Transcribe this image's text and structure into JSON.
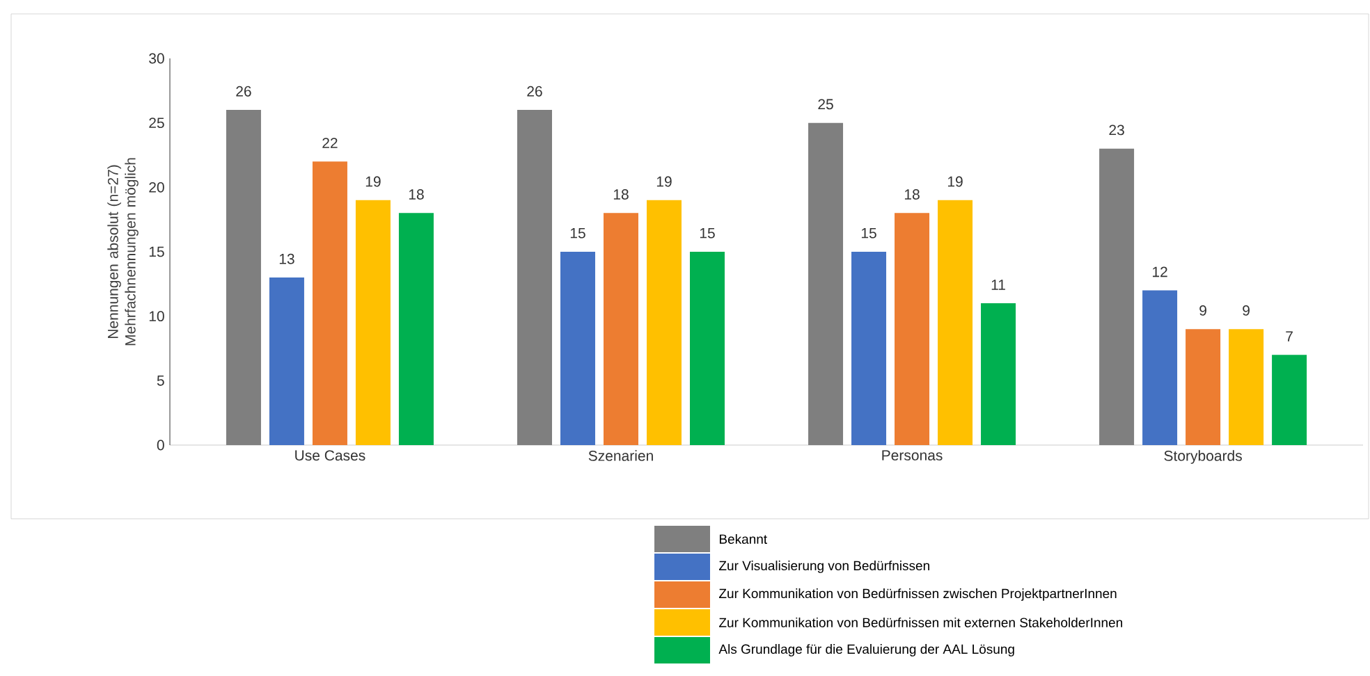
{
  "chart_data": {
    "type": "bar",
    "ylabel": "Nennungen absolut (n=27) Mehrfachnennungen möglich",
    "categories": [
      "Use Cases",
      "Szenarien",
      "Personas",
      "Storyboards"
    ],
    "series": [
      {
        "name": "Bekannt",
        "color": "#7f7f7f",
        "values": [
          26,
          26,
          25,
          23
        ]
      },
      {
        "name": "Zur Visualisierung von Bedürfnissen",
        "color": "#4472c4",
        "values": [
          13,
          15,
          15,
          12
        ]
      },
      {
        "name": "Zur Kommunikation von Bedürfnissen zwischen ProjektpartnerInnen",
        "color": "#ed7d31",
        "values": [
          22,
          18,
          18,
          9
        ]
      },
      {
        "name": "Zur Kommunikation von Bedürfnissen mit externen StakeholderInnen",
        "color": "#ffc000",
        "values": [
          19,
          19,
          19,
          9
        ]
      },
      {
        "name": "Als Grundlage für die Evaluierung der AAL Lösung",
        "color": "#00b050",
        "values": [
          18,
          15,
          11,
          7
        ]
      }
    ],
    "ylim": [
      0,
      30
    ],
    "yticks": [
      0,
      5,
      10,
      15,
      20,
      25,
      30
    ],
    "data_labels": true,
    "grid": false,
    "legend": "bottom"
  }
}
